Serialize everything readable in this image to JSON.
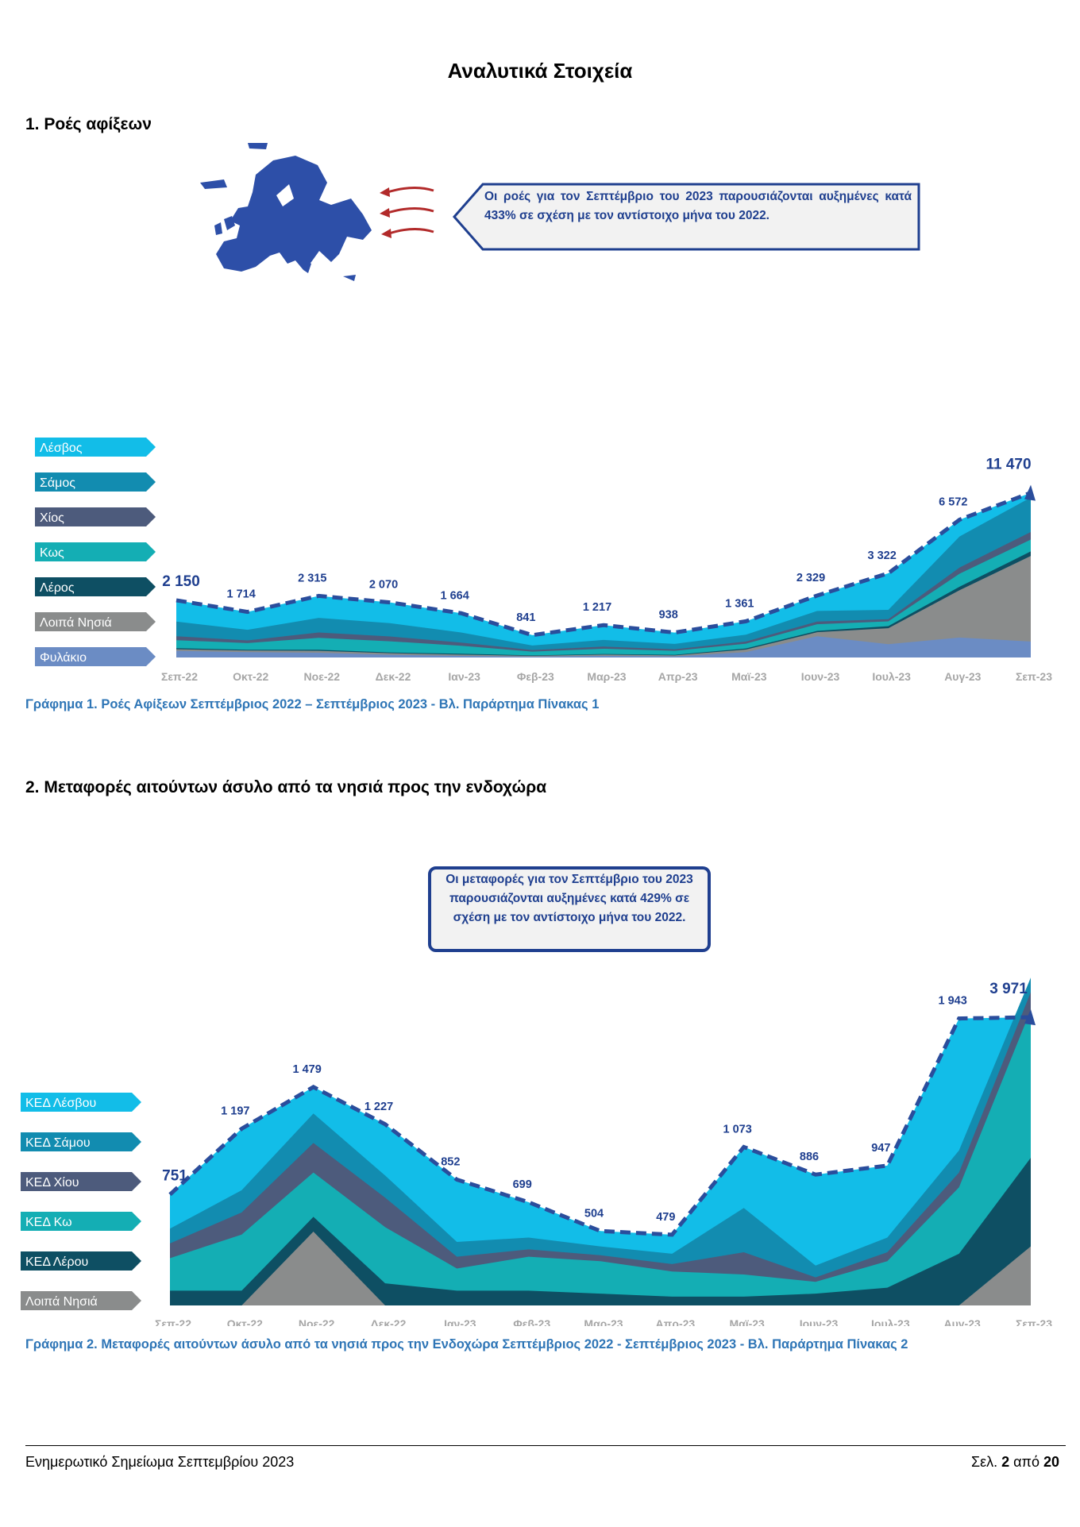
{
  "page_title": "Αναλυτικά Στοιχεία",
  "section1": {
    "heading": "1.  Ροές αφίξεων",
    "callout": "Οι ροές για τον Σεπτέμβριο του 2023 παρουσιάζονται αυξημένες κατά 433% σε σχέση με τον αντίστοιχο μήνα του 2022.",
    "caption": "Γράφημα 1. Ροές Αφίξεων Σεπτέμβριος 2022 – Σεπτέμβριος 2023 - Βλ. Παράρτημα  Πίνακας 1"
  },
  "section2": {
    "heading": "2.  Μεταφορές αιτούντων άσυλο από τα νησιά προς την ενδοχώρα",
    "callout": "Οι μεταφορές για τον Σεπτέμβριο του 2023 παρουσιάζονται αυξημένες κατά 429% σε σχέση με τον αντίστοιχο μήνα του 2022.",
    "caption": "Γράφημα 2. Μεταφορές αιτούντων άσυλο από τα νησιά προς την Ενδοχώρα Σεπτέμβριος 2022 - Σεπτέμβριος 2023 - Βλ. Παράρτημα Πίνακας 2"
  },
  "footer": {
    "left": "Ενημερωτικό Σημείωμα Σεπτεμβρίου 2023",
    "page_prefix": "Σελ. ",
    "page_num": "2",
    "page_mid": " από ",
    "page_total": "20"
  },
  "icons": {
    "map": "europe-map-icon",
    "arrows": "incoming-arrows-icon"
  },
  "chart_data": [
    {
      "type": "area",
      "stacked": true,
      "title": "",
      "categories": [
        "Σεπ-22",
        "Οκτ-22",
        "Νοε-22",
        "Δεκ-22",
        "Ιαν-23",
        "Φεβ-23",
        "Μαρ-23",
        "Απρ-23",
        "Μαϊ-23",
        "Ιουν-23",
        "Ιουλ-23",
        "Αυγ-23",
        "Σεπ-23"
      ],
      "totals": [
        2150,
        1714,
        2315,
        2070,
        1664,
        841,
        1217,
        938,
        1361,
        2329,
        3322,
        6572,
        11470
      ],
      "total_labels": [
        "2 150",
        "1 714",
        "2 315",
        "2 070",
        "1 664",
        "841",
        "1 217",
        "938",
        "1 361",
        "2 329",
        "3 322",
        "6 572",
        "11 470"
      ],
      "series": [
        {
          "name": "Φυλάκιο",
          "color": "#6b8cc4",
          "values": [
            250,
            200,
            180,
            100,
            60,
            30,
            60,
            40,
            200,
            800,
            500,
            750,
            600
          ]
        },
        {
          "name": "Λοιπά Νησιά",
          "color": "#8a8c8c",
          "values": [
            60,
            60,
            70,
            60,
            50,
            30,
            50,
            40,
            100,
            150,
            600,
            1800,
            3600
          ]
        },
        {
          "name": "Λέρος",
          "color": "#0e4f63",
          "values": [
            40,
            30,
            40,
            30,
            30,
            20,
            20,
            20,
            40,
            50,
            80,
            150,
            250
          ]
        },
        {
          "name": "Κως",
          "color": "#14aeb4",
          "values": [
            300,
            250,
            450,
            420,
            300,
            140,
            200,
            150,
            180,
            250,
            180,
            600,
            700
          ]
        },
        {
          "name": "Χίος",
          "color": "#4d5b7c",
          "values": [
            150,
            100,
            200,
            180,
            120,
            60,
            80,
            60,
            80,
            100,
            80,
            300,
            500
          ]
        },
        {
          "name": "Σάμος",
          "color": "#128cb0",
          "values": [
            550,
            400,
            550,
            500,
            380,
            170,
            250,
            200,
            260,
            400,
            350,
            1750,
            3500
          ]
        },
        {
          "name": "Λέσβος",
          "color": "#12bde8",
          "values": [
            800,
            674,
            825,
            780,
            724,
            391,
            557,
            428,
            501,
            579,
            1532,
            1222,
            2320
          ]
        }
      ]
    },
    {
      "type": "area",
      "stacked": true,
      "title": "",
      "categories": [
        "Σεπ-22",
        "Οκτ-22",
        "Νοε-22",
        "Δεκ-22",
        "Ιαν-23",
        "Φεβ-23",
        "Μαρ-23",
        "Απρ-23",
        "Μαϊ-23",
        "Ιουν-23",
        "Ιουλ-23",
        "Αυγ-23",
        "Σεπ-23"
      ],
      "totals": [
        751,
        1197,
        1479,
        1227,
        852,
        699,
        504,
        479,
        1073,
        886,
        947,
        1943,
        3971
      ],
      "total_labels": [
        "751",
        "1 197",
        "1 479",
        "1 227",
        "852",
        "699",
        "504",
        "479",
        "1 073",
        "886",
        "947",
        "1 943",
        "3 971"
      ],
      "series": [
        {
          "name": "Λοιπά Νησιά",
          "color": "#8a8c8c",
          "values": [
            0,
            0,
            500,
            0,
            0,
            0,
            0,
            0,
            0,
            0,
            0,
            0,
            400
          ]
        },
        {
          "name": "ΚΕΔ Λέρου",
          "color": "#0e4f63",
          "values": [
            100,
            100,
            100,
            150,
            100,
            100,
            80,
            60,
            60,
            80,
            120,
            350,
            600
          ]
        },
        {
          "name": "ΚΕΔ Κω",
          "color": "#14aeb4",
          "values": [
            220,
            380,
            300,
            380,
            150,
            230,
            220,
            170,
            150,
            80,
            180,
            450,
            1000
          ]
        },
        {
          "name": "ΚΕΔ Χίου",
          "color": "#4d5b7c",
          "values": [
            100,
            150,
            200,
            200,
            80,
            50,
            40,
            50,
            150,
            30,
            60,
            100,
            300
          ]
        },
        {
          "name": "ΚΕΔ Σάμου",
          "color": "#128cb0",
          "values": [
            100,
            150,
            200,
            150,
            100,
            80,
            60,
            70,
            300,
            80,
            100,
            150,
            800
          ]
        },
        {
          "name": "ΚΕΔ Λέσβου",
          "color": "#12bde8",
          "values": [
            231,
            417,
            179,
            347,
            422,
            239,
            104,
            129,
            413,
            616,
            487,
            893,
            871
          ]
        }
      ]
    }
  ]
}
